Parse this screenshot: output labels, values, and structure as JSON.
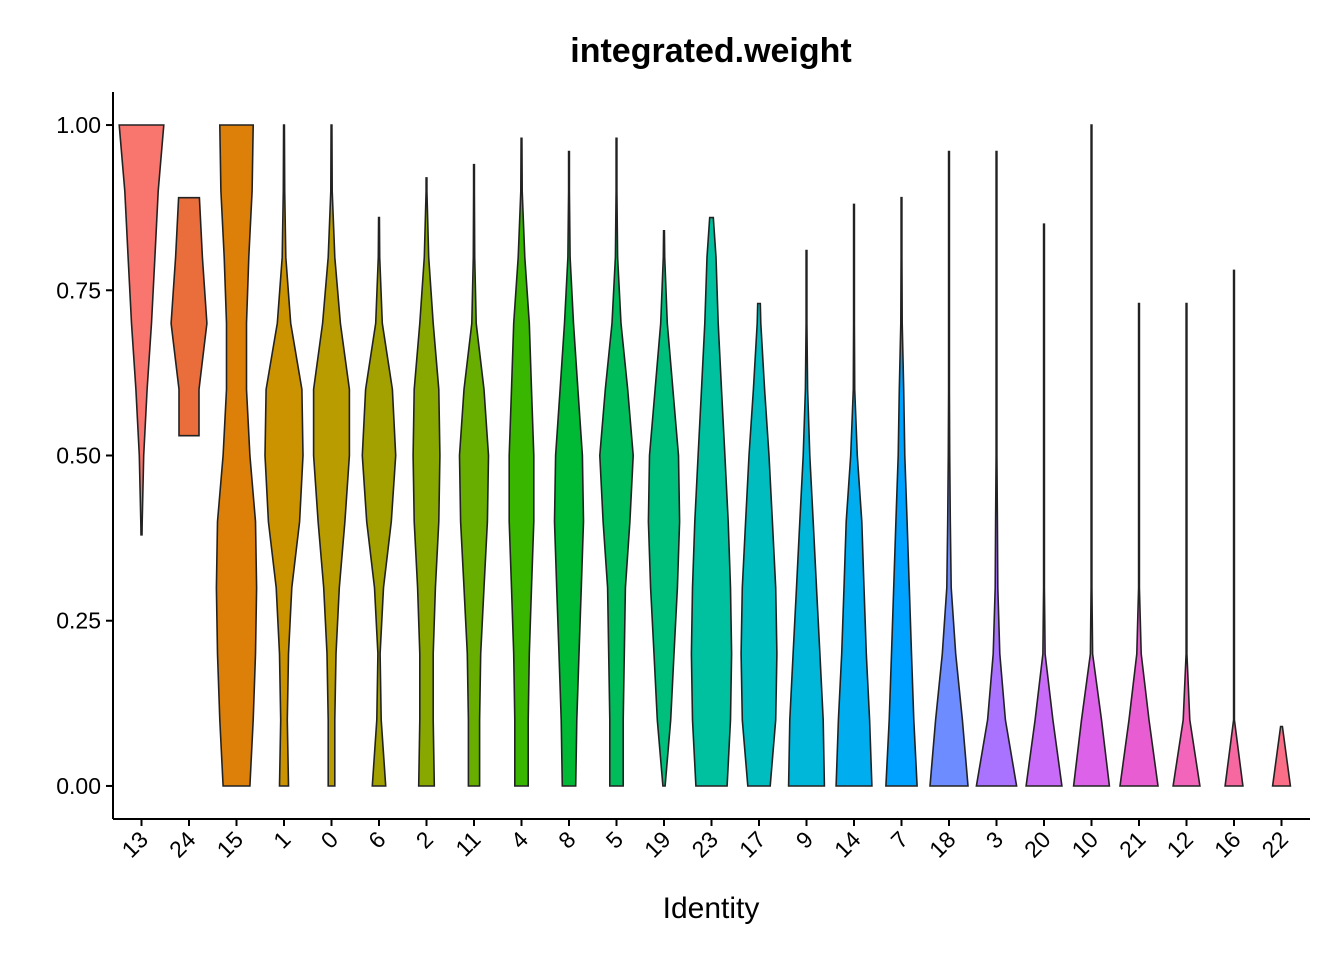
{
  "chart_data": {
    "type": "violin",
    "title": "integrated.weight",
    "xlabel": "Identity",
    "ylim": [
      -0.05,
      1.05
    ],
    "yticks": [
      {
        "value": 0,
        "label": "0.00"
      },
      {
        "value": 0.25,
        "label": "0.25"
      },
      {
        "value": 0.5,
        "label": "0.50"
      },
      {
        "value": 0.75,
        "label": "0.75"
      },
      {
        "value": 1,
        "label": "1.00"
      }
    ],
    "levels": [
      0,
      0.1,
      0.2,
      0.3,
      0.4,
      0.5,
      0.6,
      0.7,
      0.8,
      0.9,
      1.0
    ],
    "series": [
      {
        "name": "13",
        "color": "#F8766D",
        "min": 0.38,
        "max": 1.0,
        "widths": [
          0,
          0,
          0,
          0,
          0.03,
          0.1,
          0.25,
          0.45,
          0.6,
          0.75,
          1.0
        ]
      },
      {
        "name": "24",
        "color": "#EA6E3B",
        "min": 0.53,
        "max": 0.89,
        "widths": [
          0,
          0,
          0,
          0,
          0,
          0.45,
          0.45,
          0.8,
          0.6,
          0.45,
          0
        ]
      },
      {
        "name": "15",
        "color": "#DC800A",
        "min": 0,
        "max": 1.0,
        "widths": [
          0.6,
          0.75,
          0.85,
          0.9,
          0.85,
          0.6,
          0.45,
          0.45,
          0.55,
          0.7,
          0.75
        ]
      },
      {
        "name": "1",
        "color": "#CB9300",
        "min": 0,
        "max": 1.0,
        "widths": [
          0.2,
          0.15,
          0.2,
          0.35,
          0.7,
          0.85,
          0.8,
          0.3,
          0.08,
          0.03,
          0.01
        ]
      },
      {
        "name": "0",
        "color": "#B99C00",
        "min": 0,
        "max": 1.0,
        "widths": [
          0.15,
          0.15,
          0.2,
          0.35,
          0.6,
          0.8,
          0.8,
          0.4,
          0.15,
          0.03,
          0.01
        ]
      },
      {
        "name": "6",
        "color": "#A2A100",
        "min": 0,
        "max": 0.86,
        "widths": [
          0.3,
          0.1,
          0.05,
          0.2,
          0.55,
          0.75,
          0.6,
          0.15,
          0.03,
          0,
          0
        ]
      },
      {
        "name": "2",
        "color": "#88A800",
        "min": 0,
        "max": 0.92,
        "widths": [
          0.35,
          0.3,
          0.3,
          0.4,
          0.55,
          0.6,
          0.55,
          0.3,
          0.1,
          0.02,
          0
        ]
      },
      {
        "name": "11",
        "color": "#67AE00",
        "min": 0,
        "max": 0.94,
        "widths": [
          0.25,
          0.25,
          0.3,
          0.45,
          0.6,
          0.65,
          0.45,
          0.1,
          0.03,
          0.01,
          0
        ]
      },
      {
        "name": "4",
        "color": "#39B600",
        "min": 0,
        "max": 0.98,
        "widths": [
          0.3,
          0.3,
          0.35,
          0.45,
          0.55,
          0.55,
          0.45,
          0.35,
          0.15,
          0.03,
          0
        ]
      },
      {
        "name": "8",
        "color": "#00B935",
        "min": 0,
        "max": 0.96,
        "widths": [
          0.3,
          0.35,
          0.45,
          0.55,
          0.65,
          0.6,
          0.4,
          0.2,
          0.05,
          0.02,
          0
        ]
      },
      {
        "name": "5",
        "color": "#00BC5A",
        "min": 0,
        "max": 0.98,
        "widths": [
          0.3,
          0.3,
          0.35,
          0.4,
          0.6,
          0.75,
          0.5,
          0.2,
          0.05,
          0.02,
          0
        ]
      },
      {
        "name": "19",
        "color": "#00BF7D",
        "min": 0,
        "max": 0.84,
        "widths": [
          0.05,
          0.3,
          0.45,
          0.6,
          0.7,
          0.65,
          0.4,
          0.15,
          0.03,
          0,
          0
        ]
      },
      {
        "name": "23",
        "color": "#00C19F",
        "min": 0,
        "max": 0.86,
        "widths": [
          0.7,
          0.85,
          0.9,
          0.85,
          0.75,
          0.6,
          0.45,
          0.3,
          0.2,
          0,
          0
        ]
      },
      {
        "name": "17",
        "color": "#00BDC0",
        "min": 0,
        "max": 0.73,
        "widths": [
          0.5,
          0.75,
          0.8,
          0.75,
          0.6,
          0.45,
          0.25,
          0.08,
          0,
          0,
          0
        ]
      },
      {
        "name": "9",
        "color": "#00B7DA",
        "min": 0,
        "max": 0.81,
        "widths": [
          0.8,
          0.75,
          0.6,
          0.45,
          0.3,
          0.15,
          0.05,
          0.02,
          0.01,
          0,
          0
        ]
      },
      {
        "name": "14",
        "color": "#00AEF0",
        "min": 0,
        "max": 0.88,
        "widths": [
          0.8,
          0.7,
          0.55,
          0.45,
          0.35,
          0.15,
          0.03,
          0.01,
          0.01,
          0,
          0
        ]
      },
      {
        "name": "7",
        "color": "#00A2FF",
        "min": 0,
        "max": 0.89,
        "widths": [
          0.7,
          0.55,
          0.45,
          0.35,
          0.25,
          0.15,
          0.1,
          0.03,
          0.01,
          0,
          0
        ]
      },
      {
        "name": "18",
        "color": "#6D8CFF",
        "min": 0,
        "max": 0.96,
        "widths": [
          0.85,
          0.6,
          0.3,
          0.1,
          0.06,
          0.03,
          0.01,
          0.01,
          0.01,
          0.01,
          0
        ]
      },
      {
        "name": "3",
        "color": "#A972FF",
        "min": 0,
        "max": 0.96,
        "widths": [
          0.9,
          0.4,
          0.15,
          0.06,
          0.04,
          0.02,
          0.01,
          0.01,
          0.01,
          0.01,
          0
        ]
      },
      {
        "name": "20",
        "color": "#C86BF8",
        "min": 0,
        "max": 0.85,
        "widths": [
          0.8,
          0.4,
          0.05,
          0.02,
          0.02,
          0.01,
          0.01,
          0.01,
          0.01,
          0,
          0
        ]
      },
      {
        "name": "10",
        "color": "#DB62E9",
        "min": 0,
        "max": 1.0,
        "widths": [
          0.8,
          0.45,
          0.05,
          0.01,
          0.01,
          0.01,
          0.01,
          0.01,
          0.01,
          0.01,
          0.01
        ]
      },
      {
        "name": "21",
        "color": "#E85ED2",
        "min": 0,
        "max": 0.73,
        "widths": [
          0.85,
          0.45,
          0.1,
          0.02,
          0.01,
          0.01,
          0.01,
          0.01,
          0,
          0,
          0
        ]
      },
      {
        "name": "12",
        "color": "#F365BA",
        "min": 0,
        "max": 0.73,
        "widths": [
          0.6,
          0.15,
          0.01,
          0.01,
          0.01,
          0.01,
          0.01,
          0.01,
          0,
          0,
          0
        ]
      },
      {
        "name": "16",
        "color": "#F868A0",
        "min": 0,
        "max": 0.78,
        "widths": [
          0.4,
          0.01,
          0.01,
          0.01,
          0.01,
          0.01,
          0.01,
          0.01,
          0,
          0,
          0
        ]
      },
      {
        "name": "22",
        "color": "#FB6E87",
        "min": 0,
        "max": 0.09,
        "widths": [
          0.4,
          0,
          0,
          0,
          0,
          0,
          0,
          0,
          0,
          0,
          0
        ]
      }
    ]
  }
}
